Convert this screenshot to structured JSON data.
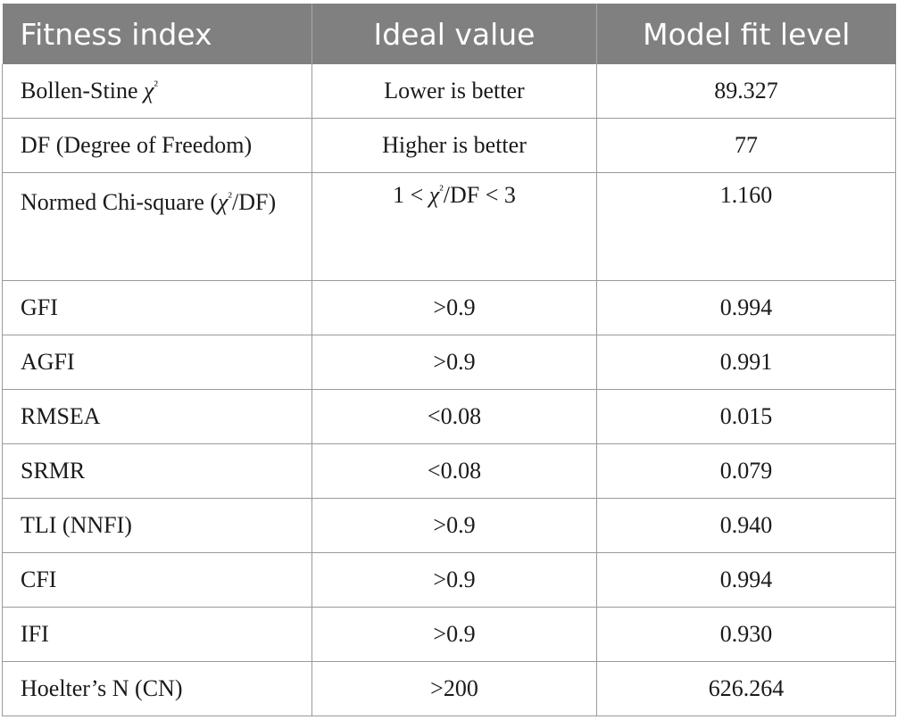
{
  "table": {
    "headers": [
      "Fitness index",
      "Ideal value",
      "Model fit level"
    ],
    "rows": [
      {
        "index": "Bollen-Stine χ²",
        "ideal": "Lower is better",
        "fit": "89.327"
      },
      {
        "index": "DF (Degree of Freedom)",
        "ideal": "Higher is better",
        "fit": "77"
      },
      {
        "index": "Normed Chi-square (χ²/DF)",
        "ideal": "1 < χ²/DF < 3",
        "fit": "1.160"
      },
      {
        "index": "GFI",
        "ideal": ">0.9",
        "fit": "0.994"
      },
      {
        "index": "AGFI",
        "ideal": ">0.9",
        "fit": "0.991"
      },
      {
        "index": "RMSEA",
        "ideal": "<0.08",
        "fit": "0.015"
      },
      {
        "index": "SRMR",
        "ideal": "<0.08",
        "fit": "0.079"
      },
      {
        "index": "TLI (NNFI)",
        "ideal": ">0.9",
        "fit": "0.940"
      },
      {
        "index": "CFI",
        "ideal": ">0.9",
        "fit": "0.994"
      },
      {
        "index": "IFI",
        "ideal": ">0.9",
        "fit": "0.930"
      },
      {
        "index": "Hoelter’s N (CN)",
        "ideal": ">200",
        "fit": "626.264"
      }
    ]
  },
  "colors": {
    "header_bg": "#808080",
    "header_text": "#ffffff",
    "grid": "#9a9a9a"
  }
}
